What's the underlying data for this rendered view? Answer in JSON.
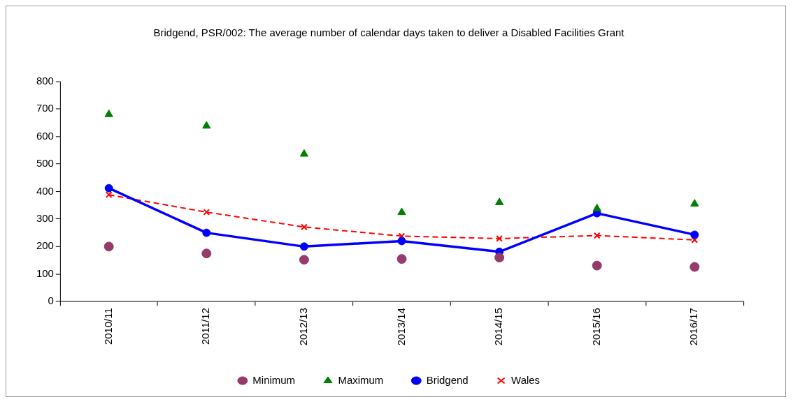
{
  "chart_data": {
    "type": "line",
    "title": "Bridgend, PSR/002: The average number of calendar days taken to deliver a Disabled Facilities Grant",
    "categories": [
      "2010/11",
      "2011/12",
      "2012/13",
      "2013/14",
      "2014/15",
      "2015/16",
      "2016/17"
    ],
    "series": [
      {
        "name": "Minimum",
        "type": "scatter",
        "marker": "circle",
        "color": "#953a6b",
        "values": [
          200,
          175,
          152,
          155,
          160,
          131,
          126
        ]
      },
      {
        "name": "Maximum",
        "type": "scatter",
        "marker": "triangle",
        "color": "#008000",
        "values": [
          680,
          638,
          536,
          324,
          360,
          338,
          355
        ]
      },
      {
        "name": "Bridgend",
        "marker": "circle",
        "line_style": "solid",
        "color": "#0000ff",
        "values": [
          412,
          250,
          200,
          220,
          181,
          321,
          243
        ]
      },
      {
        "name": "Wales",
        "marker": "cross",
        "line_style": "dashed",
        "color": "#ff0000",
        "values": [
          388,
          325,
          271,
          238,
          229,
          240,
          224
        ]
      }
    ],
    "ylim": [
      0,
      800
    ],
    "yticks": [
      0,
      100,
      200,
      300,
      400,
      500,
      600,
      700,
      800
    ],
    "grid": false,
    "legend": "bottom"
  }
}
